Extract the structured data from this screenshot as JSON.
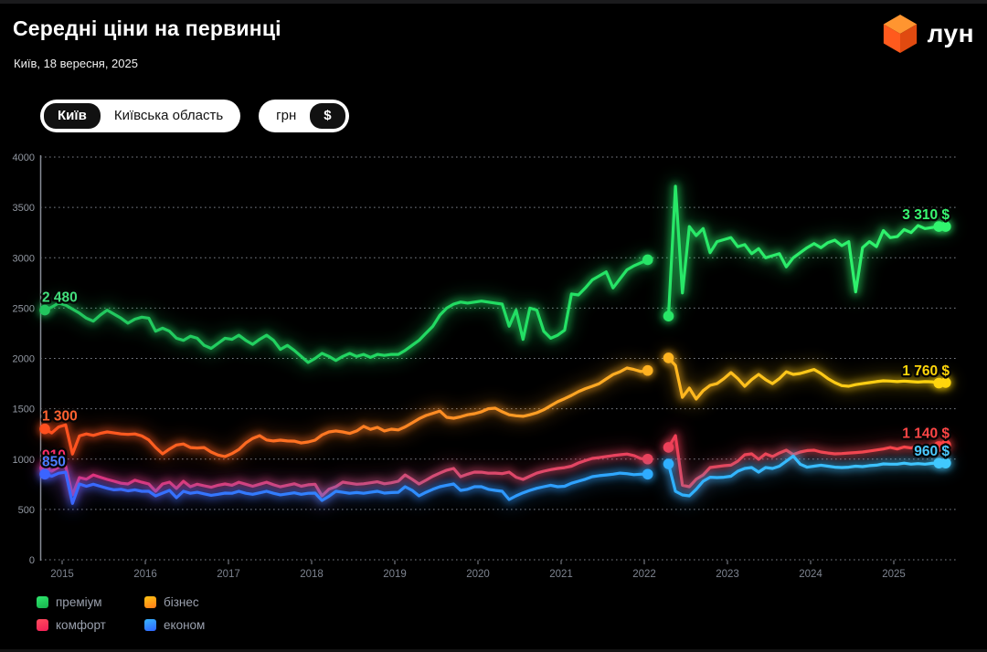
{
  "header": {
    "title": "Середні ціни на первинці",
    "subtitle": "Київ, 18 вересня, 2025",
    "logo_text": "лун"
  },
  "logo_colors": {
    "cube_top": "#ff9530",
    "cube_left": "#ff5a1d",
    "cube_right": "#e04a10"
  },
  "toggles": {
    "city": {
      "options": [
        "Київ",
        "Київська область"
      ],
      "selected": "Київ"
    },
    "currency": {
      "options": [
        "грн",
        "$"
      ],
      "selected": "$"
    }
  },
  "chart_data": {
    "type": "line",
    "x_unit": "month",
    "x_start": "2014-10",
    "x_end": "2025-08",
    "gap_months": [
      "2022-02",
      "2022-03"
    ],
    "x_ticks": [
      2015,
      2016,
      2017,
      2018,
      2019,
      2020,
      2021,
      2022,
      2023,
      2024,
      2025
    ],
    "y_ticks": [
      0,
      500,
      1000,
      1500,
      2000,
      2500,
      3000,
      3500,
      4000
    ],
    "ylim": [
      0,
      4000
    ],
    "grid": "dotted-horizontal",
    "legend_position": "bottom-left",
    "series": [
      {
        "name": "преміум",
        "start_label": "2 480",
        "end_label": "3 310 $",
        "label_color_start": "#43df7c",
        "label_color_end": "#39f972",
        "color_stops": [
          [
            0,
            "#22c55e"
          ],
          [
            0.5,
            "#22dd63"
          ],
          [
            1,
            "#31f56e"
          ]
        ],
        "values": [
          2480,
          2510,
          2550,
          2530,
          2490,
          2450,
          2400,
          2370,
          2430,
          2480,
          2440,
          2400,
          2350,
          2390,
          2410,
          2400,
          2270,
          2300,
          2270,
          2200,
          2180,
          2220,
          2200,
          2130,
          2100,
          2150,
          2200,
          2190,
          2230,
          2180,
          2140,
          2190,
          2230,
          2180,
          2090,
          2130,
          2080,
          2020,
          1960,
          2000,
          2050,
          2020,
          1980,
          2020,
          2050,
          2020,
          2040,
          2010,
          2040,
          2030,
          2040,
          2040,
          2080,
          2130,
          2180,
          2250,
          2320,
          2430,
          2500,
          2540,
          2560,
          2550,
          2560,
          2570,
          2560,
          2550,
          2540,
          2320,
          2480,
          2190,
          2500,
          2480,
          2270,
          2200,
          2230,
          2280,
          2640,
          2630,
          2700,
          2780,
          2820,
          2860,
          2700,
          2790,
          2880,
          2920,
          2950,
          2980,
          null,
          null,
          2420,
          3710,
          2650,
          3310,
          3220,
          3290,
          3050,
          3160,
          3180,
          3200,
          3110,
          3130,
          3040,
          3090,
          3000,
          3020,
          3040,
          2910,
          3000,
          3050,
          3100,
          3140,
          3100,
          3150,
          3175,
          3120,
          3160,
          2660,
          3100,
          3160,
          3110,
          3270,
          3200,
          3210,
          3280,
          3250,
          3320,
          3290,
          3300,
          3310,
          3310
        ]
      },
      {
        "name": "бізнес",
        "start_label": "1 300",
        "end_label": "1 760 $",
        "label_color_start": "#ff6230",
        "label_color_end": "#ffd60a",
        "color_stops": [
          [
            0,
            "#ff4f1f"
          ],
          [
            0.25,
            "#ff6d22"
          ],
          [
            0.55,
            "#ffa025"
          ],
          [
            0.8,
            "#ffc41c"
          ],
          [
            1,
            "#ffd60d"
          ]
        ],
        "values": [
          1300,
          1260,
          1320,
          1340,
          1050,
          1230,
          1250,
          1235,
          1255,
          1270,
          1260,
          1250,
          1245,
          1250,
          1230,
          1190,
          1115,
          1052,
          1100,
          1140,
          1150,
          1115,
          1110,
          1115,
          1070,
          1040,
          1025,
          1055,
          1095,
          1160,
          1205,
          1233,
          1190,
          1180,
          1188,
          1180,
          1178,
          1160,
          1170,
          1188,
          1240,
          1270,
          1280,
          1270,
          1255,
          1280,
          1325,
          1295,
          1315,
          1280,
          1297,
          1290,
          1320,
          1360,
          1400,
          1433,
          1455,
          1478,
          1415,
          1406,
          1420,
          1440,
          1451,
          1470,
          1500,
          1506,
          1470,
          1440,
          1430,
          1425,
          1440,
          1460,
          1490,
          1530,
          1570,
          1600,
          1633,
          1670,
          1700,
          1723,
          1750,
          1796,
          1840,
          1868,
          1905,
          1890,
          1870,
          1880,
          null,
          null,
          2005,
          1930,
          1614,
          1705,
          1596,
          1680,
          1732,
          1750,
          1800,
          1859,
          1800,
          1723,
          1790,
          1841,
          1790,
          1750,
          1800,
          1868,
          1841,
          1850,
          1870,
          1890,
          1850,
          1800,
          1760,
          1730,
          1723,
          1740,
          1750,
          1760,
          1770,
          1778,
          1775,
          1770,
          1775,
          1770,
          1765,
          1770,
          1768,
          1755,
          1760
        ]
      },
      {
        "name": "комфорт",
        "start_label": "910",
        "end_label": "1 140 $",
        "label_color_start": "#ff2e68",
        "label_color_end": "#ff4545",
        "color_stops": [
          [
            0,
            "#f5296f"
          ],
          [
            0.4,
            "#db4a70"
          ],
          [
            0.7,
            "#ef3f56"
          ],
          [
            1,
            "#ff4141"
          ]
        ],
        "values": [
          910,
          880,
          920,
          930,
          644,
          816,
          800,
          843,
          820,
          798,
          780,
          760,
          753,
          790,
          770,
          753,
          680,
          753,
          771,
          708,
          780,
          726,
          750,
          735,
          720,
          740,
          753,
          740,
          770,
          750,
          730,
          750,
          770,
          745,
          725,
          740,
          755,
          730,
          745,
          750,
          635,
          700,
          726,
          771,
          760,
          750,
          755,
          765,
          775,
          755,
          765,
          780,
          843,
          800,
          753,
          790,
          830,
          861,
          890,
          907,
          825,
          850,
          871,
          870,
          860,
          861,
          855,
          871,
          820,
          798,
          830,
          861,
          880,
          895,
          907,
          915,
          930,
          961,
          985,
          1007,
          1015,
          1025,
          1035,
          1043,
          1050,
          1035,
          1005,
          1000,
          null,
          null,
          1116,
          1234,
          740,
          726,
          800,
          843,
          916,
          925,
          934,
          940,
          980,
          1043,
          1052,
          998,
          1052,
          1025,
          1060,
          1088,
          1045,
          1070,
          1085,
          1088,
          1070,
          1060,
          1052,
          1055,
          1060,
          1065,
          1070,
          1080,
          1090,
          1100,
          1116,
          1100,
          1120,
          1110,
          1125,
          1115,
          1130,
          1125,
          1140
        ]
      },
      {
        "name": "економ",
        "start_label": "850",
        "end_label": "960 $",
        "label_color_start": "#4d7dff",
        "label_color_end": "#4cc9ff",
        "color_stops": [
          [
            0,
            "#3b64ff"
          ],
          [
            0.35,
            "#2f86ff"
          ],
          [
            0.7,
            "#2fb0ff"
          ],
          [
            1,
            "#41c9ff"
          ]
        ],
        "values": [
          850,
          830,
          860,
          870,
          560,
          753,
          730,
          750,
          730,
          710,
          695,
          700,
          685,
          695,
          680,
          680,
          635,
          662,
          689,
          617,
          680,
          660,
          670,
          655,
          640,
          650,
          662,
          660,
          680,
          660,
          650,
          665,
          680,
          660,
          645,
          655,
          665,
          650,
          660,
          662,
          590,
          630,
          680,
          670,
          660,
          668,
          660,
          670,
          680,
          662,
          668,
          670,
          726,
          690,
          635,
          670,
          700,
          726,
          740,
          753,
          689,
          700,
          726,
          726,
          700,
          689,
          680,
          599,
          635,
          665,
          689,
          710,
          726,
          740,
          726,
          730,
          760,
          780,
          800,
          825,
          835,
          843,
          850,
          861,
          855,
          845,
          850,
          850,
          null,
          null,
          952,
          680,
          644,
          635,
          700,
          780,
          820,
          816,
          820,
          830,
          880,
          907,
          916,
          871,
          916,
          907,
          930,
          980,
          1030,
          950,
          920,
          930,
          940,
          930,
          920,
          916,
          920,
          930,
          925,
          935,
          940,
          952,
          950,
          950,
          960,
          950,
          955,
          950,
          958,
          960,
          960
        ]
      }
    ]
  },
  "legend": {
    "items": [
      {
        "key": "premium",
        "label": "преміум",
        "colors": [
          "#2ee86e",
          "#17b14c"
        ]
      },
      {
        "key": "business",
        "label": "бізнес",
        "colors": [
          "#ffc413",
          "#ff7a1a"
        ]
      },
      {
        "key": "comfort",
        "label": "комфорт",
        "colors": [
          "#ff4d5e",
          "#f01e56"
        ]
      },
      {
        "key": "econom",
        "label": "економ",
        "colors": [
          "#38b6ff",
          "#2f63ff"
        ]
      }
    ]
  }
}
